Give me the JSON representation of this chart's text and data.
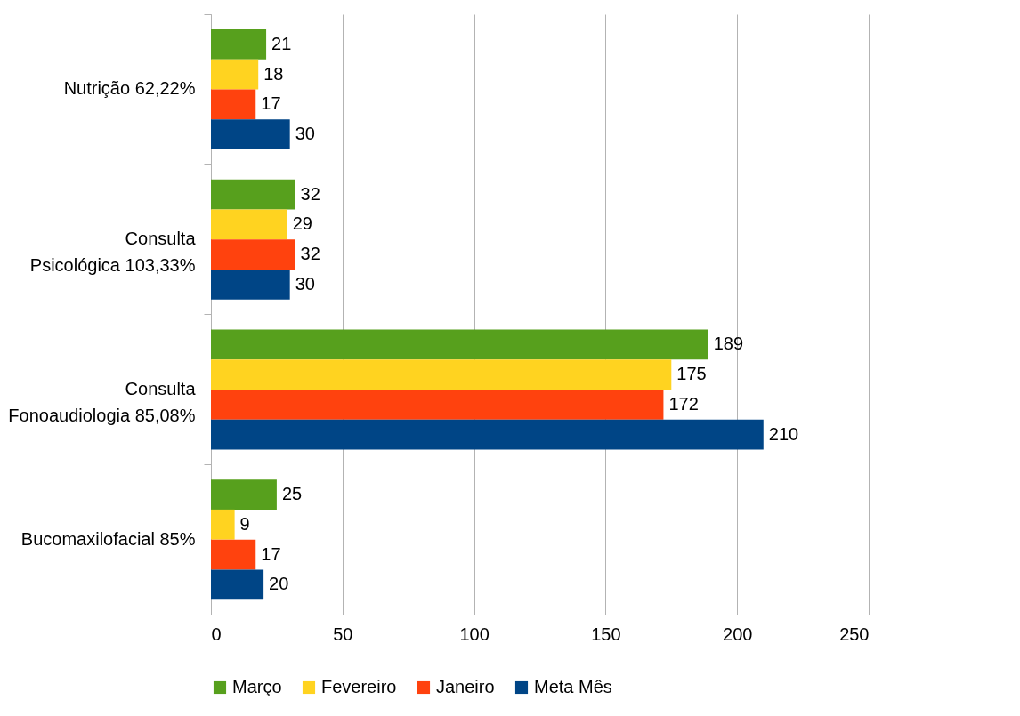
{
  "chart_data": {
    "type": "bar",
    "orientation": "horizontal",
    "categories": [
      "Nutrição 62,22%",
      "Consulta Psicológica 103,33%",
      "Consulta Fonoaudiologia 85,08%",
      "Bucomaxilofacial 85%"
    ],
    "series": [
      {
        "name": "Março",
        "color": "#57a01d",
        "values": [
          21,
          32,
          189,
          25
        ]
      },
      {
        "name": "Fevereiro",
        "color": "#ffd320",
        "values": [
          18,
          29,
          175,
          9
        ]
      },
      {
        "name": "Janeiro",
        "color": "#ff420e",
        "values": [
          17,
          32,
          172,
          17
        ]
      },
      {
        "name": "Meta Mês",
        "color": "#004586",
        "values": [
          30,
          30,
          210,
          20
        ]
      }
    ],
    "xlim": [
      0,
      250
    ],
    "xticks": [
      0,
      50,
      100,
      150,
      200,
      250
    ],
    "grid": "x",
    "legend": "bottom",
    "data_labels": true
  }
}
